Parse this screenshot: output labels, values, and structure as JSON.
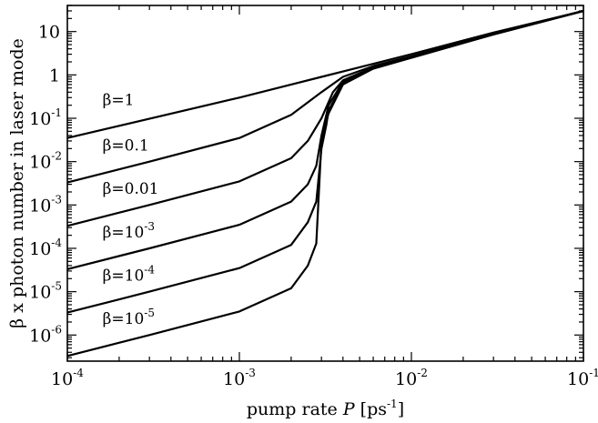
{
  "chart_data": {
    "type": "line",
    "title": "",
    "xlabel_pre": "pump rate ",
    "xlabel_var": "P",
    "xlabel_post": " [ps",
    "xlabel_exp": "-1",
    "xlabel_close": "]",
    "ylabel": "β x photon number in laser mode",
    "xscale": "log",
    "yscale": "log",
    "xlim": [
      0.0001,
      0.1
    ],
    "ylim": [
      2.5e-07,
      40
    ],
    "x_ticks": [
      {
        "value": 0.0001,
        "base": "10",
        "exp": "-4"
      },
      {
        "value": 0.001,
        "base": "10",
        "exp": "-3"
      },
      {
        "value": 0.01,
        "base": "10",
        "exp": "-2"
      },
      {
        "value": 0.1,
        "base": "10",
        "exp": "-1"
      }
    ],
    "y_ticks": [
      {
        "value": 1e-06,
        "base": "10",
        "exp": "-6"
      },
      {
        "value": 1e-05,
        "base": "10",
        "exp": "-5"
      },
      {
        "value": 0.0001,
        "base": "10",
        "exp": "-4"
      },
      {
        "value": 0.001,
        "base": "10",
        "exp": "-3"
      },
      {
        "value": 0.01,
        "base": "10",
        "exp": "-2"
      },
      {
        "value": 0.1,
        "base": "10",
        "exp": "-1"
      },
      {
        "value": 1,
        "base": "1",
        "exp": ""
      },
      {
        "value": 10,
        "base": "10",
        "exp": ""
      }
    ],
    "grid": false,
    "series": [
      {
        "label_base": "β=1",
        "label_exp": "",
        "label_at": [
          0.00016,
          0.2
        ],
        "points": [
          [
            0.0001,
            0.035
          ],
          [
            0.001,
            0.3
          ],
          [
            0.002,
            0.6
          ],
          [
            0.003,
            0.9
          ],
          [
            0.01,
            3
          ],
          [
            0.03,
            9.5
          ],
          [
            0.1,
            30
          ]
        ]
      },
      {
        "label_base": "β=0.1",
        "label_exp": "",
        "label_at": [
          0.00016,
          0.018
        ],
        "points": [
          [
            0.0001,
            0.0033
          ],
          [
            0.0003,
            0.01
          ],
          [
            0.001,
            0.035
          ],
          [
            0.002,
            0.12
          ],
          [
            0.003,
            0.4
          ],
          [
            0.004,
            0.9
          ],
          [
            0.006,
            1.6
          ],
          [
            0.01,
            2.7
          ],
          [
            0.03,
            8.8
          ],
          [
            0.1,
            30
          ]
        ]
      },
      {
        "label_base": "β=0.01",
        "label_exp": "",
        "label_at": [
          0.00016,
          0.0018
        ],
        "points": [
          [
            0.0001,
            0.00033
          ],
          [
            0.0003,
            0.001
          ],
          [
            0.001,
            0.0035
          ],
          [
            0.002,
            0.012
          ],
          [
            0.0025,
            0.03
          ],
          [
            0.003,
            0.1
          ],
          [
            0.0035,
            0.4
          ],
          [
            0.004,
            0.75
          ],
          [
            0.006,
            1.5
          ],
          [
            0.01,
            2.6
          ],
          [
            0.03,
            8.7
          ],
          [
            0.1,
            30
          ]
        ]
      },
      {
        "label_base": "β=10",
        "label_exp": "-3",
        "label_at": [
          0.00016,
          0.00018
        ],
        "points": [
          [
            0.0001,
            3.3e-05
          ],
          [
            0.0003,
            0.0001
          ],
          [
            0.001,
            0.00035
          ],
          [
            0.002,
            0.0012
          ],
          [
            0.0025,
            0.003
          ],
          [
            0.0028,
            0.008
          ],
          [
            0.003,
            0.04
          ],
          [
            0.0033,
            0.2
          ],
          [
            0.004,
            0.7
          ],
          [
            0.006,
            1.5
          ],
          [
            0.01,
            2.5
          ],
          [
            0.03,
            8.6
          ],
          [
            0.1,
            30
          ]
        ]
      },
      {
        "label_base": "β=10",
        "label_exp": "-4",
        "label_at": [
          0.00016,
          1.8e-05
        ],
        "points": [
          [
            0.0001,
            3.3e-06
          ],
          [
            0.0003,
            1e-05
          ],
          [
            0.001,
            3.5e-05
          ],
          [
            0.002,
            0.00012
          ],
          [
            0.0025,
            0.0004
          ],
          [
            0.0028,
            0.0012
          ],
          [
            0.003,
            0.02
          ],
          [
            0.0032,
            0.07
          ],
          [
            0.0033,
            0.15
          ],
          [
            0.004,
            0.65
          ],
          [
            0.006,
            1.4
          ],
          [
            0.01,
            2.5
          ],
          [
            0.03,
            8.6
          ],
          [
            0.1,
            30
          ]
        ]
      },
      {
        "label_base": "β=10",
        "label_exp": "-5",
        "label_at": [
          0.00016,
          1.8e-06
        ],
        "points": [
          [
            0.0001,
            3.3e-07
          ],
          [
            0.0003,
            1e-06
          ],
          [
            0.001,
            3.5e-06
          ],
          [
            0.002,
            1.2e-05
          ],
          [
            0.0025,
            4e-05
          ],
          [
            0.0028,
            0.00013
          ],
          [
            0.003,
            0.03
          ],
          [
            0.0031,
            0.055
          ],
          [
            0.0033,
            0.13
          ],
          [
            0.004,
            0.6
          ],
          [
            0.006,
            1.4
          ],
          [
            0.01,
            2.5
          ],
          [
            0.03,
            8.6
          ],
          [
            0.1,
            30
          ]
        ]
      }
    ]
  }
}
